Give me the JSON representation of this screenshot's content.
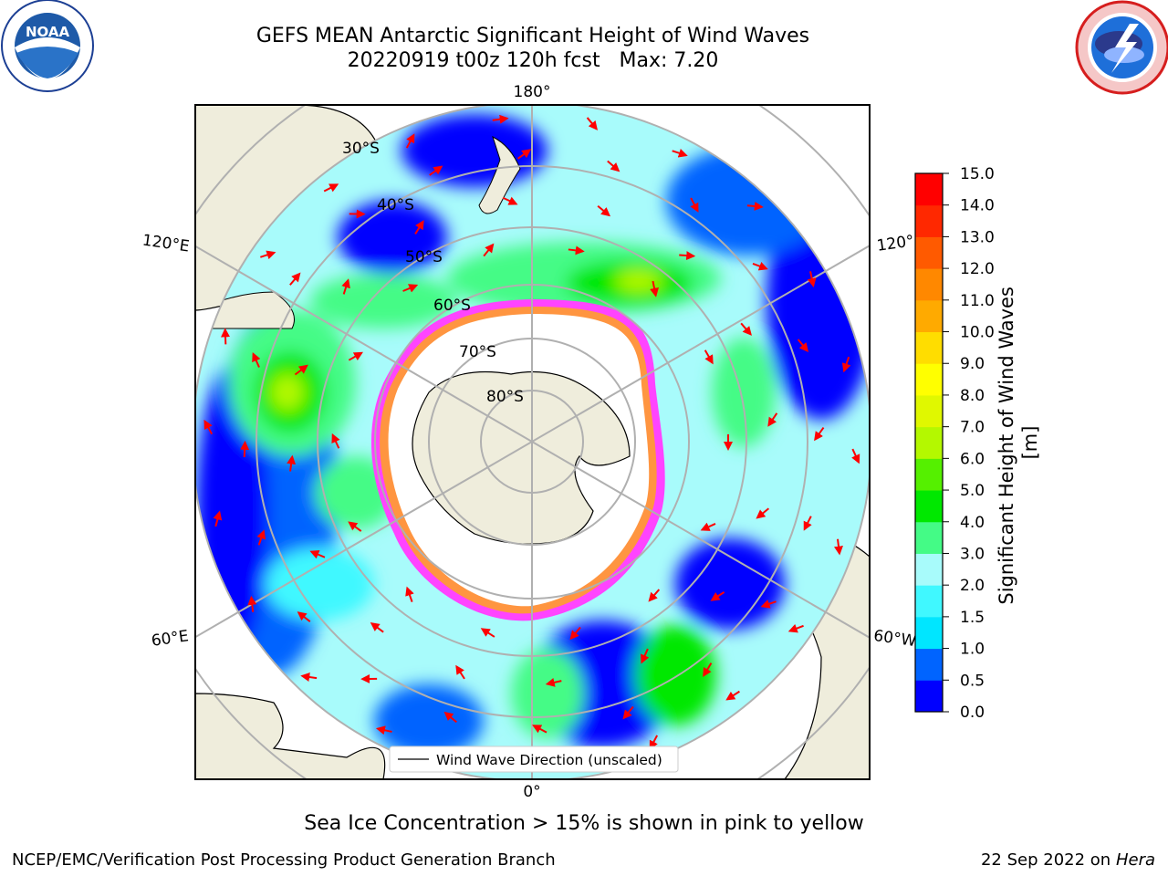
{
  "title": {
    "line1": "GEFS MEAN Antarctic Significant Height of Wind Waves",
    "line2": "20220919 t00z 120h fcst   Max: 7.20"
  },
  "map": {
    "projection": "south-polar-stereographic",
    "longitude_labels": [
      "180°",
      "120°E",
      "120°",
      "60°E",
      "60°W",
      "0°"
    ],
    "latitude_labels": [
      "30°S",
      "40°S",
      "50°S",
      "60°S",
      "70°S",
      "80°S"
    ],
    "legend_text": "Wind Wave Direction (unscaled)",
    "arrow_color": "#ff0000",
    "land_color": "#efeddc",
    "ice_colors": [
      "#ff44ff",
      "#ffb000",
      "#ffe24a"
    ]
  },
  "colorbar": {
    "label": "Significant Height of Wind Waves [m]",
    "ticks": [
      "0.0",
      "0.5",
      "1.0",
      "1.5",
      "2.0",
      "3.0",
      "4.0",
      "5.0",
      "6.0",
      "7.0",
      "8.0",
      "9.0",
      "10.0",
      "11.0",
      "12.0",
      "13.0",
      "14.0",
      "15.0"
    ],
    "colors": [
      "#0000ff",
      "#0064ff",
      "#00e6ff",
      "#40f8ff",
      "#a8fbfb",
      "#44fb86",
      "#00e800",
      "#55f000",
      "#b4f800",
      "#e0f800",
      "#ffff00",
      "#ffdd00",
      "#ffaa00",
      "#ff8800",
      "#ff5a00",
      "#ff2800",
      "#ff0000"
    ]
  },
  "logos": {
    "noaa": "NOAA",
    "noaa_ring": "NATIONAL OCEANIC AND ATMOSPHERIC ADMINISTRATION · U.S. DEPARTMENT OF COMMERCE",
    "nws_ring": "NATIONAL WEATHER SERVICE"
  },
  "footer": {
    "note": "Sea Ice Concentration > 15% is shown in pink to yellow",
    "credit": "NCEP/EMC/Verification Post Processing Product Generation Branch",
    "date": "22 Sep 2022 on",
    "machine": "Hera"
  }
}
